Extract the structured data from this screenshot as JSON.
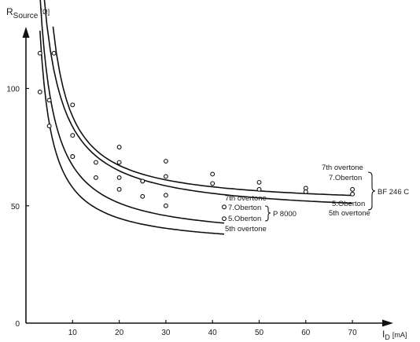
{
  "chart_data": {
    "type": "scatter",
    "ylabel_main": "R",
    "ylabel_sub": "Source",
    "ylabel_unit": "[Ω]",
    "xlabel_main": "I",
    "xlabel_sub": "D",
    "xlabel_unit": "[mA]",
    "xlim": [
      0,
      74
    ],
    "ylim": [
      0,
      120
    ],
    "x_ticks": [
      10,
      20,
      30,
      40,
      50,
      60,
      70
    ],
    "y_ticks": [
      0,
      50,
      100
    ],
    "series": [
      {
        "name": "BF 246 C 7th overtone",
        "x": [
          6,
          10,
          20,
          30,
          40,
          50,
          60,
          70
        ],
        "y": [
          115,
          93,
          75,
          69,
          63.5,
          60,
          57.5,
          57
        ]
      },
      {
        "name": "BF 246 C 5th overtone",
        "x": [
          3,
          5,
          10,
          20,
          25,
          30,
          40,
          50,
          60,
          70
        ],
        "y": [
          115,
          95,
          80,
          68.5,
          60.5,
          62.5,
          59.5,
          57,
          56,
          55
        ]
      },
      {
        "name": "P 8000 7th overtone",
        "x": [
          3,
          10,
          15,
          20,
          25,
          30,
          42.5
        ],
        "y": [
          98.5,
          71,
          68.5,
          62,
          60.5,
          54.5,
          49.5
        ]
      },
      {
        "name": "P 8000 5th overtone",
        "x": [
          5,
          10,
          15,
          20,
          25,
          30,
          42.5
        ],
        "y": [
          84,
          71,
          62,
          57,
          54,
          50,
          44.5
        ]
      }
    ],
    "annotations": {
      "bf_7_en": "7th overtone",
      "bf_7_de": "7.Oberton",
      "bf_5_de": "5.Oberton",
      "bf_5_en": "5th overtone",
      "bf_name": "BF 246 C",
      "p_7_en": "7th overtone",
      "p_7_de": "7.Oberton",
      "p_5_de": "5.Oberton",
      "p_5_en": "5th overtone",
      "p_name": "P 8000"
    }
  }
}
